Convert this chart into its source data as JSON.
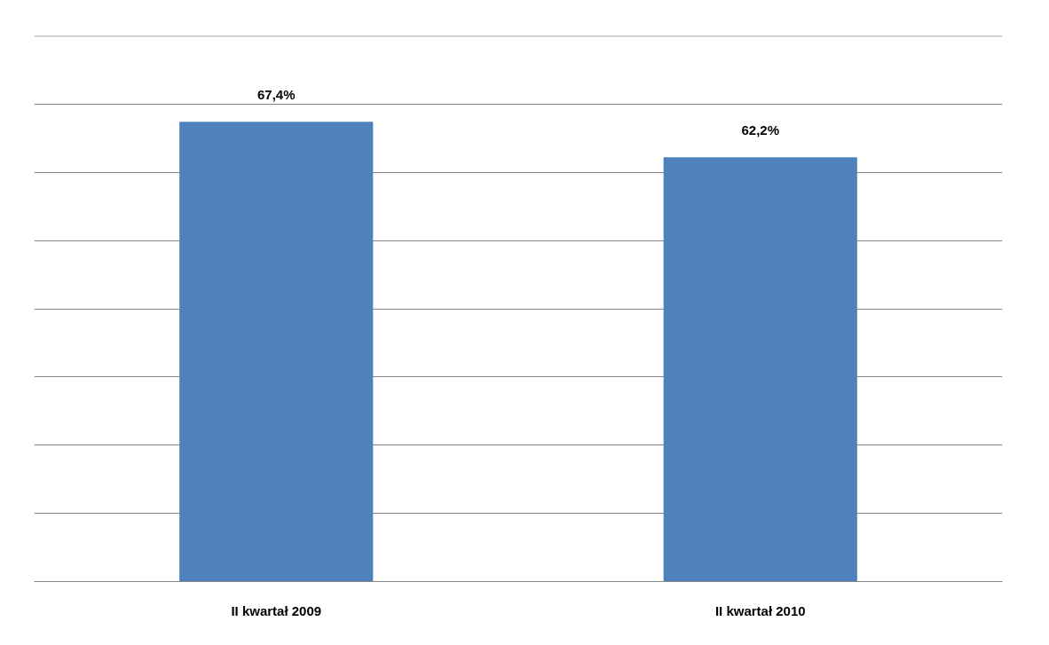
{
  "chart_data": {
    "type": "bar",
    "categories": [
      "II kwartał 2009",
      "II kwartał 2010"
    ],
    "values": [
      67.4,
      62.2
    ],
    "value_labels": [
      "67,4%",
      "62,2%"
    ],
    "color": "#4f81bd",
    "ylim": [
      0,
      80
    ],
    "yticks": [
      {
        "value": 0,
        "label": null
      },
      {
        "value": 10,
        "label": null
      },
      {
        "value": 20,
        "label": null
      },
      {
        "value": 30,
        "label": null
      },
      {
        "value": 40,
        "label": null
      },
      {
        "value": 50,
        "label": null
      },
      {
        "value": 60,
        "label": null
      },
      {
        "value": 70,
        "label": null
      },
      {
        "value": 80,
        "label": null
      }
    ],
    "tick_labels": "x",
    "grid": "y",
    "legend": false
  }
}
